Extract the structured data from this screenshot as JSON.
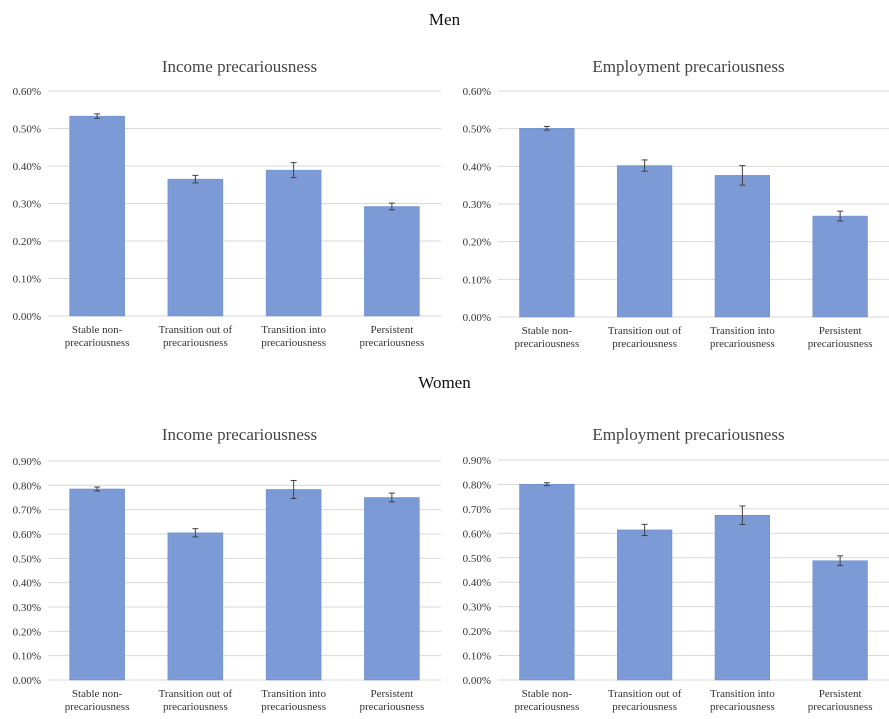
{
  "sections": {
    "men": "Men",
    "women": "Women"
  },
  "colors": {
    "bar": "#7b9ad6",
    "bar_stroke": "#6a8bcc",
    "grid": "#d9d9d9",
    "error_bar": "#404040"
  },
  "chart_data": [
    {
      "type": "bar",
      "group": "Men",
      "title": "Income precariousness",
      "categories": [
        [
          "Stable non-",
          "precariousness"
        ],
        [
          "Transition out of",
          "precariousness"
        ],
        [
          "Transition into",
          "precariousness"
        ],
        [
          "Persistent",
          "precariousness"
        ]
      ],
      "values": [
        0.533,
        0.365,
        0.389,
        0.292
      ],
      "errors": [
        0.006,
        0.01,
        0.02,
        0.009
      ],
      "ylim": [
        0,
        0.6
      ],
      "yticks": [
        0,
        0.1,
        0.2,
        0.3,
        0.4,
        0.5,
        0.6
      ],
      "ytick_labels": [
        "0.00%",
        "0.10%",
        "0.20%",
        "0.30%",
        "0.40%",
        "0.50%",
        "0.60%"
      ],
      "grid": true
    },
    {
      "type": "bar",
      "group": "Men",
      "title": "Employment precariousness",
      "categories": [
        [
          "Stable non-",
          "precariousness"
        ],
        [
          "Transition out of",
          "precariousness"
        ],
        [
          "Transition into",
          "precariousness"
        ],
        [
          "Persistent",
          "precariousness"
        ]
      ],
      "values": [
        0.501,
        0.402,
        0.376,
        0.268
      ],
      "errors": [
        0.005,
        0.015,
        0.026,
        0.013
      ],
      "ylim": [
        0,
        0.6
      ],
      "yticks": [
        0,
        0.1,
        0.2,
        0.3,
        0.4,
        0.5,
        0.6
      ],
      "ytick_labels": [
        "0.00%",
        "0.10%",
        "0.20%",
        "0.30%",
        "0.40%",
        "0.50%",
        "0.60%"
      ],
      "grid": true
    },
    {
      "type": "bar",
      "group": "Women",
      "title": "Income precariousness",
      "categories": [
        [
          "Stable non-",
          "precariousness"
        ],
        [
          "Transition out of",
          "precariousness"
        ],
        [
          "Transition into",
          "precariousness"
        ],
        [
          "Persistent",
          "precariousness"
        ]
      ],
      "values": [
        0.785,
        0.605,
        0.783,
        0.75
      ],
      "errors": [
        0.008,
        0.017,
        0.037,
        0.018
      ],
      "ylim": [
        0,
        0.9
      ],
      "yticks": [
        0,
        0.1,
        0.2,
        0.3,
        0.4,
        0.5,
        0.6,
        0.7,
        0.8,
        0.9
      ],
      "ytick_labels": [
        "0.00%",
        "0.10%",
        "0.20%",
        "0.30%",
        "0.40%",
        "0.50%",
        "0.60%",
        "0.70%",
        "0.80%",
        "0.90%"
      ],
      "grid": true
    },
    {
      "type": "bar",
      "group": "Women",
      "title": "Employment precariousness",
      "categories": [
        [
          "Stable non-",
          "precariousness"
        ],
        [
          "Transition out of",
          "precariousness"
        ],
        [
          "Transition into",
          "precariousness"
        ],
        [
          "Persistent",
          "precariousness"
        ]
      ],
      "values": [
        0.801,
        0.614,
        0.674,
        0.488
      ],
      "errors": [
        0.006,
        0.023,
        0.038,
        0.02
      ],
      "ylim": [
        0,
        0.9
      ],
      "yticks": [
        0,
        0.1,
        0.2,
        0.3,
        0.4,
        0.5,
        0.6,
        0.7,
        0.8,
        0.9
      ],
      "ytick_labels": [
        "0.00%",
        "0.10%",
        "0.20%",
        "0.30%",
        "0.40%",
        "0.50%",
        "0.60%",
        "0.70%",
        "0.80%",
        "0.90%"
      ],
      "grid": true
    }
  ]
}
